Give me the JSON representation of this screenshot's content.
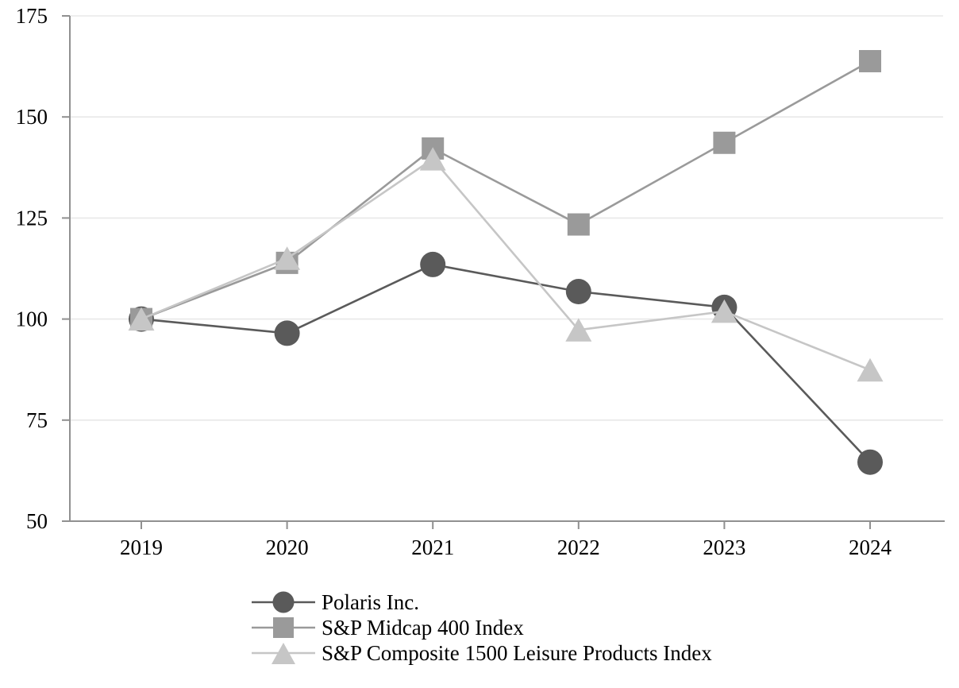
{
  "chart_data": {
    "type": "line",
    "title": "",
    "xlabel": "",
    "ylabel": "",
    "x_labels": [
      "2019",
      "2020",
      "2021",
      "2022",
      "2023",
      "2024"
    ],
    "yticks": [
      50,
      75,
      100,
      125,
      150,
      175
    ],
    "ylim": [
      50,
      175
    ],
    "grid": true,
    "legend_position": "bottom-left",
    "series": [
      {
        "name": "Polaris Inc.",
        "marker": "circle",
        "color": "#5a5a5a",
        "values": [
          100,
          96.5,
          113.5,
          106.8,
          102.9,
          64.6
        ]
      },
      {
        "name": "S&P Midcap 400 Index",
        "marker": "square",
        "color": "#9a9a9a",
        "values": [
          100,
          113.9,
          142.2,
          123.4,
          143.6,
          163.8
        ]
      },
      {
        "name": "S&P Composite 1500 Leisure Products Index",
        "marker": "triangle",
        "color": "#c6c6c6",
        "values": [
          100,
          115.0,
          139.6,
          97.3,
          101.9,
          87.4
        ]
      }
    ],
    "axis_color": "#909090",
    "grid_color": "#e8e8e8",
    "tick_label_color": "#000000"
  }
}
